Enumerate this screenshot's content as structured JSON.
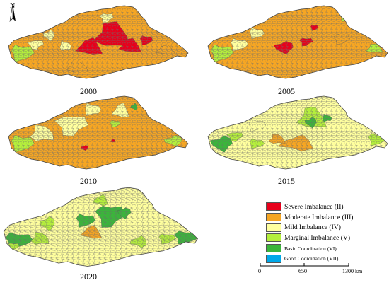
{
  "north_label": "N",
  "panels": [
    {
      "year": "2000"
    },
    {
      "year": "2005"
    },
    {
      "year": "2010"
    },
    {
      "year": "2015"
    },
    {
      "year": "2020"
    }
  ],
  "legend": [
    {
      "label": "Severe Imbalance  (II)",
      "color": "#e8001b"
    },
    {
      "label": "Moderate Imbalance (III)",
      "color": "#f6a623"
    },
    {
      "label": "Mild Imbalance  (IV)",
      "color": "#ffff9e"
    },
    {
      "label": "Marginal Imbalance (V)",
      "color": "#b5ef3c"
    },
    {
      "label": "Basic Coordination (VI)",
      "color": "#3bb53b"
    },
    {
      "label": "Good Coordination (VII)",
      "color": "#00a8e8"
    }
  ],
  "scale_bar": {
    "labels": [
      "0",
      "650",
      "1300 km"
    ]
  }
}
